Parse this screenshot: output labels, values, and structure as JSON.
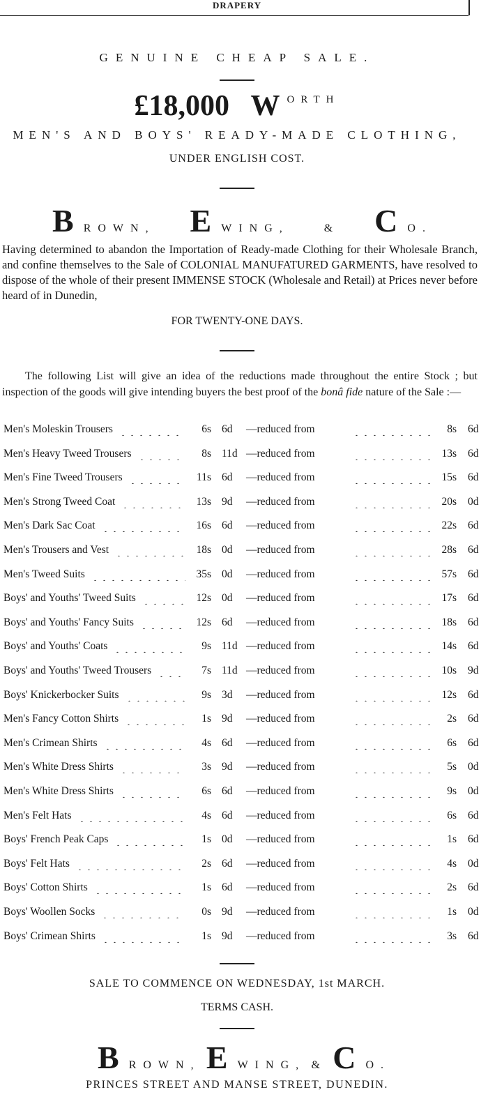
{
  "header": {
    "section": "DRAPERY"
  },
  "headline": "GENUINE CHEAP SALE.",
  "amount": "£18,000",
  "worth": "WORTH",
  "subhead": "MEN'S AND BOYS' READY-MADE CLOTHING,",
  "subhead2": "UNDER ENGLISH COST.",
  "firm": [
    "BROWN,",
    "EWING,",
    "&",
    "CO."
  ],
  "paragraph": "Having determined to abandon the Importation of Ready-made Clothing for their Wholesale Branch, and confine themselves to the Sale of COLONIAL MANUFATURED GARMENTS, have resolved to dispose of the whole of their present IMMENSE STOCK (Wholesale and Retail) at Prices never before heard of in Dunedin,",
  "duration": "FOR TWENTY-ONE DAYS.",
  "intro": {
    "before": "The following List will give an idea of the reductions made throughout the entire Stock ; but inspection of the goods will give intending buyers the best proof of the",
    "italic": "bonâ fide",
    "after": "nature of the Sale :—"
  },
  "reduced_label": "—reduced from",
  "price_list": [
    [
      "Men's Moleskin Trousers",
      "6s",
      "6d",
      "8s",
      "6d"
    ],
    [
      "Men's Heavy Tweed Trousers",
      "8s",
      "11d",
      "13s",
      "6d"
    ],
    [
      "Men's Fine Tweed Trousers",
      "11s",
      "6d",
      "15s",
      "6d"
    ],
    [
      "Men's Strong Tweed Coat",
      "13s",
      "9d",
      "20s",
      "0d"
    ],
    [
      "Men's Dark Sac Coat",
      "16s",
      "6d",
      "22s",
      "6d"
    ],
    [
      "Men's Trousers and Vest",
      "18s",
      "0d",
      "28s",
      "6d"
    ],
    [
      "Men's Tweed Suits",
      "35s",
      "0d",
      "57s",
      "6d"
    ],
    [
      "Boys' and Youths' Tweed Suits",
      "12s",
      "0d",
      "17s",
      "6d"
    ],
    [
      "Boys' and Youths' Fancy Suits",
      "12s",
      "6d",
      "18s",
      "6d"
    ],
    [
      "Boys' and Youths' Coats",
      "9s",
      "11d",
      "14s",
      "6d"
    ],
    [
      "Boys' and Youths' Tweed Trousers",
      "7s",
      "11d",
      "10s",
      "9d"
    ],
    [
      "Boys' Knickerbocker Suits",
      "9s",
      "3d",
      "12s",
      "6d"
    ],
    [
      "Men's Fancy Cotton Shirts",
      "1s",
      "9d",
      "2s",
      "6d"
    ],
    [
      "Men's Crimean Shirts",
      "4s",
      "6d",
      "6s",
      "6d"
    ],
    [
      "Men's White Dress Shirts",
      "3s",
      "9d",
      "5s",
      "0d"
    ],
    [
      "Men's White Dress Shirts",
      "6s",
      "6d",
      "9s",
      "0d"
    ],
    [
      "Men's Felt Hats",
      "4s",
      "6d",
      "6s",
      "6d"
    ],
    [
      "Boys' French Peak Caps",
      "1s",
      "0d",
      "1s",
      "6d"
    ],
    [
      "Boys' Felt Hats",
      "2s",
      "6d",
      "4s",
      "0d"
    ],
    [
      "Boys' Cotton Shirts",
      "1s",
      "6d",
      "2s",
      "6d"
    ],
    [
      "Boys' Woollen Socks",
      "0s",
      "9d",
      "1s",
      "0d"
    ],
    [
      "Boys' Crimean Shirts",
      "1s",
      "9d",
      "3s",
      "6d"
    ]
  ],
  "sale_start": "SALE TO COMMENCE ON WEDNESDAY, 1st MARCH.",
  "terms": "TERMS CASH.",
  "address": "PRINCES STREET AND MANSE STREET, DUNEDIN."
}
